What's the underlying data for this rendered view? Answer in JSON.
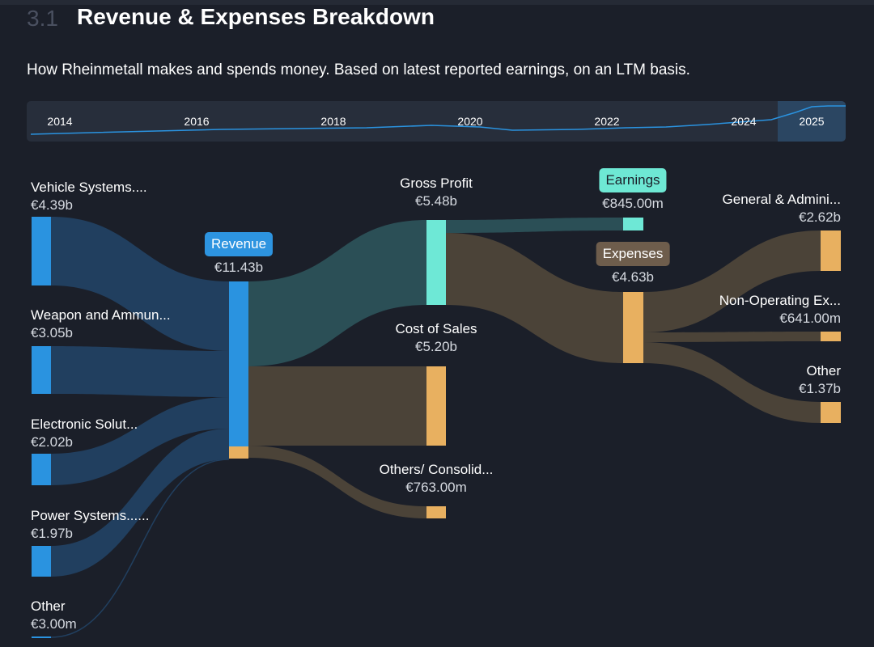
{
  "header": {
    "section_number": "3.1",
    "title": "Revenue & Expenses Breakdown",
    "subtitle": "How Rheinmetall makes and spends money. Based on latest reported earnings, on an LTM basis."
  },
  "timeline": {
    "years": [
      "2014",
      "2016",
      "2018",
      "2020",
      "2022",
      "2024",
      "2025"
    ],
    "selected": "2025"
  },
  "colors": {
    "revenue": "#2a93e0",
    "profit": "#6ee8d6",
    "cost": "#e8b060",
    "link_revenue": "#213f5f",
    "link_profit": "#2b4f56",
    "link_cost": "#4b4338"
  },
  "sankey": {
    "segments": [
      {
        "name": "Vehicle Systems....",
        "value": "€4.39b"
      },
      {
        "name": "Weapon and Ammun...",
        "value": "€3.05b"
      },
      {
        "name": "Electronic Solut...",
        "value": "€2.02b"
      },
      {
        "name": "Power Systems......",
        "value": "€1.97b"
      },
      {
        "name": "Other",
        "value": "€3.00m"
      }
    ],
    "revenue": {
      "name": "Revenue",
      "value": "€11.43b"
    },
    "gross_profit": {
      "name": "Gross Profit",
      "value": "€5.48b"
    },
    "cost_of_sales": {
      "name": "Cost of Sales",
      "value": "€5.20b"
    },
    "others_consolidation": {
      "name": "Others/ Consolid...",
      "value": "€763.00m"
    },
    "earnings": {
      "name": "Earnings",
      "value": "€845.00m"
    },
    "expenses": {
      "name": "Expenses",
      "value": "€4.63b"
    },
    "general_admin": {
      "name": "General & Admini...",
      "value": "€2.62b"
    },
    "non_operating": {
      "name": "Non-Operating Ex...",
      "value": "€641.00m"
    },
    "other_expenses": {
      "name": "Other",
      "value": "€1.37b"
    }
  }
}
